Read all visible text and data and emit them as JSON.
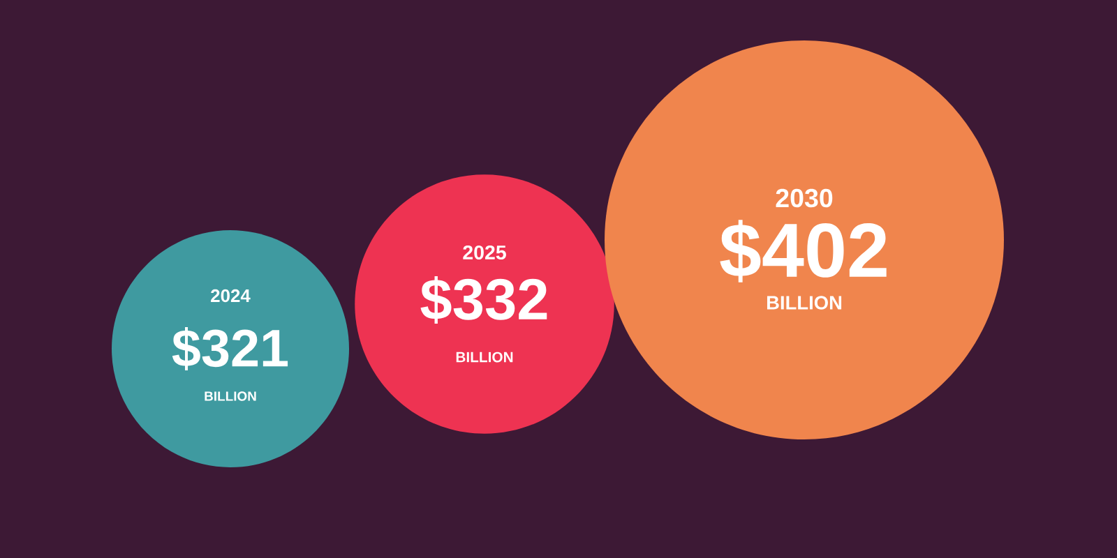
{
  "chart_data": {
    "type": "other",
    "categories": [
      "2024",
      "2025",
      "2030"
    ],
    "values": [
      321,
      332,
      402
    ],
    "value_labels": [
      "$321",
      "$332",
      "$402"
    ],
    "colors": [
      "#3f9aa0",
      "#ee3352",
      "#f0854d"
    ],
    "annotations": [
      "BILLION",
      "BILLION",
      "BILLION"
    ]
  }
}
